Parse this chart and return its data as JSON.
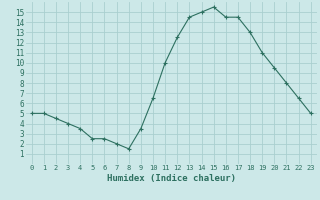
{
  "x": [
    0,
    1,
    2,
    3,
    4,
    5,
    6,
    7,
    8,
    9,
    10,
    11,
    12,
    13,
    14,
    15,
    16,
    17,
    18,
    19,
    20,
    21,
    22,
    23
  ],
  "y": [
    5.0,
    5.0,
    4.5,
    4.0,
    3.5,
    2.5,
    2.5,
    2.0,
    1.5,
    3.5,
    6.5,
    10.0,
    12.5,
    14.5,
    15.0,
    15.5,
    14.5,
    14.5,
    13.0,
    11.0,
    9.5,
    8.0,
    6.5,
    5.0
  ],
  "line_color": "#2d7060",
  "marker": "+",
  "bg_color": "#cce8e8",
  "grid_color": "#aacfcf",
  "xlabel": "Humidex (Indice chaleur)",
  "xlabel_color": "#2d7060",
  "xlim": [
    -0.5,
    23.5
  ],
  "ylim": [
    0,
    16
  ],
  "yticks": [
    1,
    2,
    3,
    4,
    5,
    6,
    7,
    8,
    9,
    10,
    11,
    12,
    13,
    14,
    15
  ],
  "xticks": [
    0,
    1,
    2,
    3,
    4,
    5,
    6,
    7,
    8,
    9,
    10,
    11,
    12,
    13,
    14,
    15,
    16,
    17,
    18,
    19,
    20,
    21,
    22,
    23
  ]
}
